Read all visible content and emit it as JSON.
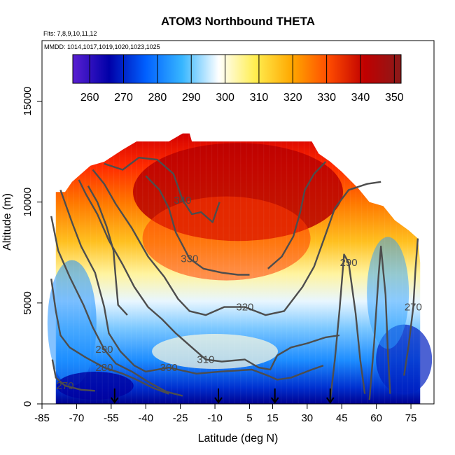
{
  "chart_data": {
    "type": "heatmap",
    "title": "ATOM3 Northbound THETA",
    "flights_note": "Flts: 7,8,9,10,11,12",
    "dates_note": "MMDD: 1014,1017,1019,1020,1023,1025",
    "xlabel": "Latitude (deg N)",
    "ylabel": "Altitude (m)",
    "xlim": [
      -85,
      85
    ],
    "ylim": [
      0,
      18000
    ],
    "x_ticks": [
      -85,
      -70,
      -55,
      -40,
      -25,
      -10,
      5,
      15,
      30,
      45,
      60,
      75
    ],
    "y_ticks": [
      0,
      5000,
      10000,
      15000
    ],
    "colorbar": {
      "min": 255,
      "max": 352,
      "ticks": [
        260,
        270,
        280,
        290,
        300,
        310,
        320,
        330,
        340,
        350
      ],
      "colors": [
        "#5a1fd2",
        "#0000a8",
        "#0060ff",
        "#37b6ff",
        "#ffffff",
        "#ffee50",
        "#ffa800",
        "#ff4c00",
        "#c00000",
        "#8a1a1a"
      ]
    },
    "profile_markers_lat": [
      -53.5,
      -8.5,
      16,
      40
    ],
    "contours": [
      {
        "level": 270,
        "label": "270",
        "points": [
          [
            -80.5,
            2200
          ],
          [
            -79,
            1300
          ],
          [
            -75,
            900
          ],
          [
            -68,
            700
          ],
          [
            -62,
            650
          ]
        ]
      },
      {
        "level": 280,
        "label": "280",
        "points": [
          [
            -81,
            6200
          ],
          [
            -79,
            4600
          ],
          [
            -77,
            3400
          ],
          [
            -73,
            2800
          ],
          [
            -66,
            2300
          ],
          [
            -58,
            1800
          ],
          [
            -50,
            1500
          ],
          [
            -44,
            1200
          ],
          [
            -37,
            800
          ],
          [
            -30,
            500
          ]
        ]
      },
      {
        "level": 290,
        "label": "290",
        "points": [
          [
            -81,
            9300
          ],
          [
            -78,
            7600
          ],
          [
            -73,
            6300
          ],
          [
            -67,
            4900
          ],
          [
            -63,
            3800
          ],
          [
            -58,
            2700
          ],
          [
            -53,
            2000
          ],
          [
            -46,
            1600
          ],
          [
            -39,
            1100
          ],
          [
            -31,
            600
          ],
          [
            -24,
            400
          ]
        ]
      },
      {
        "level": 300,
        "label": "300",
        "points": [
          [
            -77,
            10600
          ],
          [
            -72,
            9000
          ],
          [
            -68,
            7800
          ],
          [
            -62,
            6500
          ],
          [
            -58,
            4800
          ],
          [
            -56,
            3500
          ],
          [
            -51,
            2600
          ],
          [
            -45,
            1900
          ],
          [
            -40,
            1600
          ],
          [
            -30,
            1800
          ],
          [
            -18,
            1500
          ],
          [
            -8,
            1600
          ],
          [
            6,
            1700
          ],
          [
            13,
            1400
          ],
          [
            17,
            1200
          ],
          [
            23,
            1300
          ],
          [
            32,
            1700
          ],
          [
            37,
            1900
          ]
        ]
      },
      {
        "level": 300,
        "label": "",
        "points": [
          [
            -65,
            10800
          ],
          [
            -61,
            10000
          ],
          [
            -57,
            8800
          ],
          [
            -54,
            7600
          ],
          [
            -53,
            6200
          ],
          [
            -52,
            4900
          ],
          [
            -48,
            4400
          ]
        ]
      },
      {
        "level": 310,
        "label": "310",
        "points": [
          [
            -69,
            11100
          ],
          [
            -66,
            10400
          ],
          [
            -61,
            9400
          ],
          [
            -56,
            8100
          ],
          [
            -50,
            6900
          ],
          [
            -45,
            5800
          ],
          [
            -39,
            4800
          ],
          [
            -33,
            4200
          ],
          [
            -27,
            3500
          ],
          [
            -20,
            2800
          ],
          [
            -14,
            2200
          ],
          [
            -7,
            2100
          ],
          [
            3,
            2200
          ],
          [
            9,
            1800
          ],
          [
            14,
            1700
          ],
          [
            17,
            2400
          ],
          [
            23,
            2800
          ],
          [
            30,
            3000
          ],
          [
            38,
            3300
          ],
          [
            44,
            3400
          ]
        ]
      },
      {
        "level": 320,
        "label": "320",
        "points": [
          [
            -63,
            11600
          ],
          [
            -58,
            10900
          ],
          [
            -53,
            9900
          ],
          [
            -46,
            8700
          ],
          [
            -39,
            7300
          ],
          [
            -32,
            6300
          ],
          [
            -26,
            5200
          ],
          [
            -21,
            4600
          ],
          [
            -14,
            4400
          ],
          [
            -6,
            4800
          ],
          [
            3,
            4800
          ],
          [
            12,
            4400
          ],
          [
            20,
            4600
          ],
          [
            28,
            5800
          ],
          [
            33,
            6800
          ],
          [
            38,
            8400
          ],
          [
            42,
            9700
          ],
          [
            48,
            10600
          ],
          [
            56,
            10900
          ],
          [
            62,
            11000
          ]
        ]
      },
      {
        "level": 330,
        "label": "330",
        "points": [
          [
            -40,
            11300
          ],
          [
            -34,
            10600
          ],
          [
            -30,
            9700
          ],
          [
            -27,
            8500
          ],
          [
            -21,
            7200
          ],
          [
            -15,
            6700
          ],
          [
            -7,
            6500
          ],
          [
            0,
            6400
          ],
          [
            5,
            6400
          ]
        ]
      },
      {
        "level": 330,
        "label": "",
        "points": [
          [
            13,
            6700
          ],
          [
            19,
            7300
          ],
          [
            24,
            8300
          ],
          [
            27,
            9500
          ],
          [
            29,
            10600
          ],
          [
            33,
            11400
          ],
          [
            38,
            12000
          ]
        ]
      },
      {
        "level": 340,
        "label": "340",
        "points": [
          [
            -58,
            11900
          ],
          [
            -50,
            11600
          ],
          [
            -43,
            12200
          ],
          [
            -35,
            12100
          ],
          [
            -28,
            11400
          ],
          [
            -24,
            10100
          ],
          [
            -20,
            9400
          ],
          [
            -16,
            9500
          ],
          [
            -11,
            9000
          ],
          [
            -8,
            10000
          ]
        ]
      },
      {
        "level": 290,
        "label": "290",
        "points": [
          [
            40,
            200
          ],
          [
            42,
            2200
          ],
          [
            44,
            4600
          ],
          [
            46,
            7400
          ],
          [
            48,
            7000
          ],
          [
            51,
            4500
          ],
          [
            53,
            2200
          ],
          [
            55,
            500
          ]
        ]
      },
      {
        "level": 290,
        "label": "",
        "points": [
          [
            57,
            200
          ],
          [
            59,
            3000
          ],
          [
            61,
            6400
          ],
          [
            62,
            7800
          ],
          [
            64,
            5400
          ],
          [
            65,
            2600
          ],
          [
            66,
            500
          ]
        ]
      },
      {
        "level": 270,
        "label": "270",
        "points": [
          [
            72,
            1400
          ],
          [
            74,
            2900
          ],
          [
            76,
            4800
          ],
          [
            77,
            6700
          ],
          [
            78,
            8200
          ]
        ]
      }
    ]
  }
}
